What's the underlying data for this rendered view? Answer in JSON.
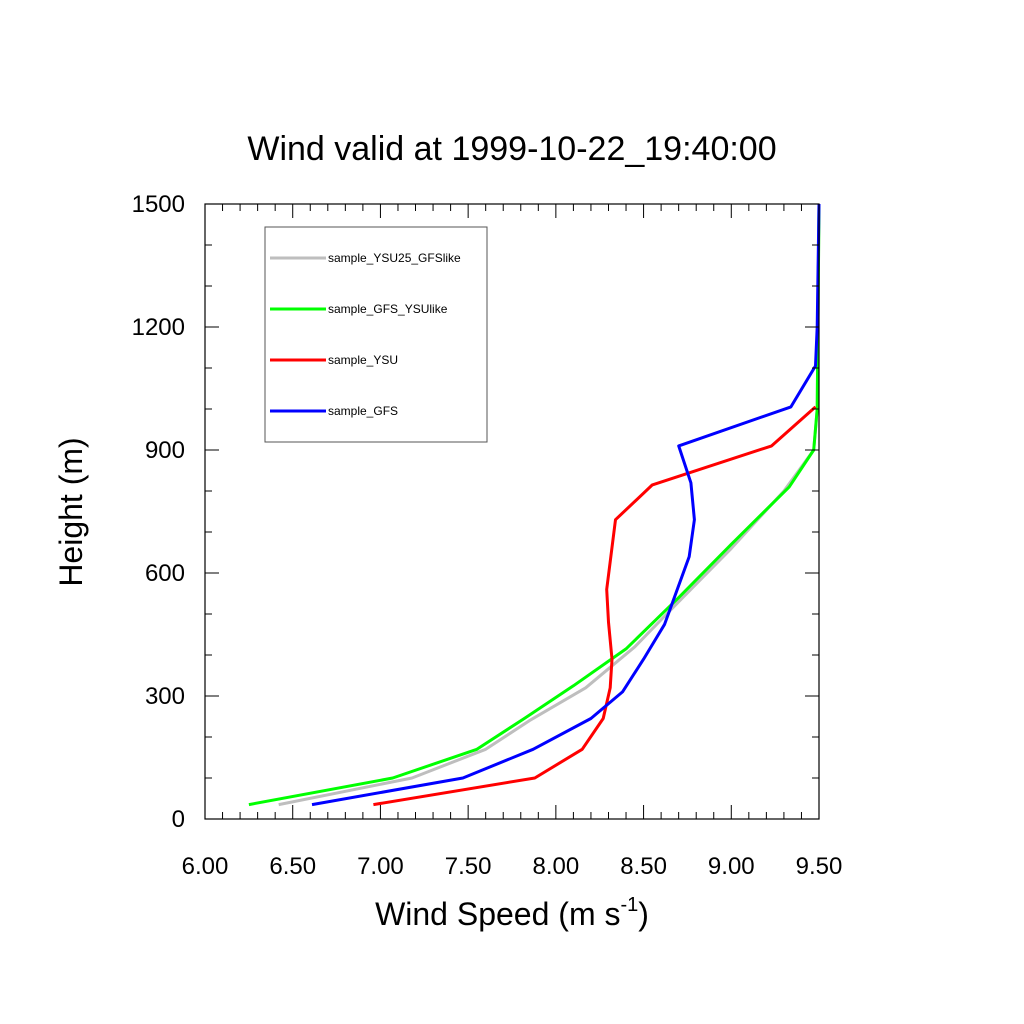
{
  "chart_data": {
    "type": "line",
    "title": "Wind valid at 1999-10-22_19:40:00",
    "xlabel": "Wind Speed (m s",
    "xlabel_sup": "-1",
    "xlabel_end": ")",
    "ylabel": "Height (m)",
    "xlim": [
      6.0,
      9.5
    ],
    "ylim": [
      0,
      1500
    ],
    "xticks": [
      "6.00",
      "6.50",
      "7.00",
      "7.50",
      "8.00",
      "8.50",
      "9.00",
      "9.50"
    ],
    "yticks": [
      "0",
      "300",
      "600",
      "900",
      "1200",
      "1500"
    ],
    "legend_position": "top-left",
    "grid": false,
    "series": [
      {
        "name": "sample_YSU25_GFSlike",
        "color": "#bebebe",
        "x": [
          6.42,
          7.18,
          7.6,
          7.85,
          8.17,
          8.45,
          8.7,
          9.0,
          9.3,
          9.47,
          9.49,
          9.5
        ],
        "y": [
          35,
          100,
          170,
          240,
          320,
          420,
          530,
          660,
          800,
          900,
          1000,
          1500
        ]
      },
      {
        "name": "sample_GFS_YSUlike",
        "color": "#00ff00",
        "x": [
          6.25,
          7.07,
          7.55,
          7.82,
          8.1,
          8.4,
          8.7,
          9.0,
          9.33,
          9.47,
          9.49,
          9.5
        ],
        "y": [
          35,
          100,
          170,
          245,
          325,
          415,
          540,
          670,
          810,
          900,
          1000,
          1500
        ]
      },
      {
        "name": "sample_YSU",
        "color": "#ff0000",
        "x": [
          6.96,
          7.88,
          8.15,
          8.27,
          8.31,
          8.32,
          8.3,
          8.29,
          8.34,
          8.55,
          9.23,
          9.48
        ],
        "y": [
          35,
          100,
          170,
          245,
          320,
          390,
          480,
          560,
          730,
          815,
          910,
          1005
        ]
      },
      {
        "name": "sample_GFS",
        "color": "#0000ff",
        "x": [
          6.61,
          7.47,
          7.87,
          8.2,
          8.38,
          8.5,
          8.62,
          8.76,
          8.79,
          8.77,
          8.7,
          9.34,
          9.48,
          9.49,
          9.5
        ],
        "y": [
          35,
          100,
          170,
          245,
          310,
          390,
          475,
          640,
          730,
          820,
          910,
          1005,
          1105,
          1200,
          1500
        ]
      }
    ]
  }
}
